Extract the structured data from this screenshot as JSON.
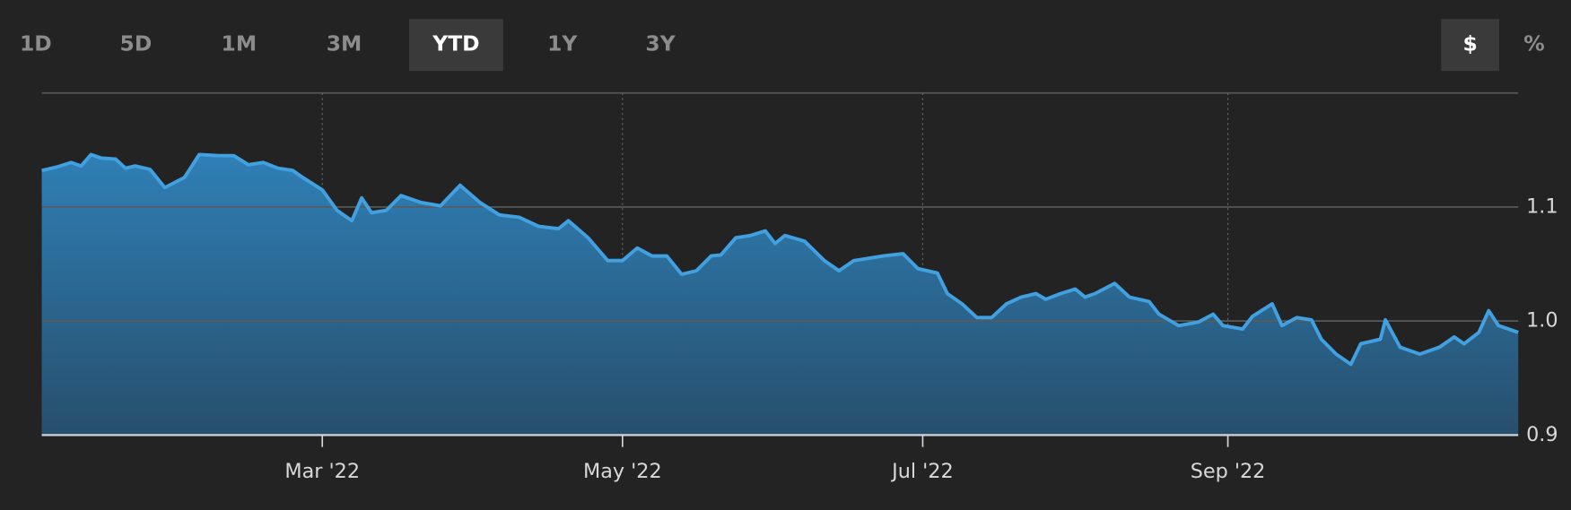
{
  "range_buttons": [
    "1D",
    "5D",
    "1M",
    "3M",
    "YTD",
    "1Y",
    "3Y"
  ],
  "unit_buttons": [
    "$",
    "%"
  ],
  "chart_data": {
    "type": "area",
    "color": "#41a0e0",
    "x": [
      2,
      5,
      8,
      10,
      12,
      14,
      17,
      19,
      21,
      24,
      27,
      31,
      34,
      38,
      41,
      44,
      47,
      50,
      53,
      55,
      59,
      62,
      65,
      67,
      69,
      72,
      75,
      79,
      83,
      87,
      91,
      95,
      99,
      103,
      107,
      109,
      113,
      117,
      120,
      123,
      126,
      129,
      132,
      135,
      138,
      140,
      143,
      146,
      149,
      151,
      153,
      157,
      161,
      164,
      167,
      170,
      173,
      177,
      180,
      184,
      186,
      189,
      192,
      195,
      198,
      201,
      204,
      206,
      209,
      212,
      214,
      216,
      220,
      223,
      227,
      229,
      233,
      237,
      240,
      242,
      246,
      248,
      252,
      254,
      257,
      260,
      262,
      265,
      268,
      270,
      274,
      275,
      278,
      282,
      286,
      289,
      291,
      294,
      296,
      298,
      302
    ],
    "values": [
      1.132,
      1.135,
      1.139,
      1.136,
      1.146,
      1.143,
      1.142,
      1.134,
      1.136,
      1.133,
      1.117,
      1.126,
      1.146,
      1.145,
      1.145,
      1.137,
      1.139,
      1.134,
      1.132,
      1.126,
      1.115,
      1.097,
      1.088,
      1.108,
      1.095,
      1.097,
      1.11,
      1.104,
      1.101,
      1.119,
      1.104,
      1.093,
      1.091,
      1.083,
      1.081,
      1.088,
      1.073,
      1.053,
      1.053,
      1.064,
      1.057,
      1.057,
      1.041,
      1.044,
      1.057,
      1.058,
      1.073,
      1.075,
      1.079,
      1.068,
      1.075,
      1.07,
      1.053,
      1.044,
      1.053,
      1.055,
      1.057,
      1.059,
      1.046,
      1.042,
      1.024,
      1.015,
      1.003,
      1.003,
      1.015,
      1.021,
      1.024,
      1.019,
      1.024,
      1.028,
      1.021,
      1.024,
      1.033,
      1.021,
      1.017,
      1.006,
      0.996,
      0.999,
      1.006,
      0.996,
      0.993,
      1.004,
      1.015,
      0.996,
      1.003,
      1.001,
      0.984,
      0.971,
      0.962,
      0.98,
      0.984,
      1.001,
      0.977,
      0.971,
      0.977,
      0.986,
      0.98,
      0.99,
      1.009,
      0.996,
      0.99
    ],
    "xlim": [
      2,
      302
    ],
    "xticks": [
      {
        "value": 59,
        "label": "Mar '22"
      },
      {
        "value": 120,
        "label": "May '22"
      },
      {
        "value": 181,
        "label": "Jul '22"
      },
      {
        "value": 243,
        "label": "Sep '22"
      }
    ],
    "ylim": [
      0.9,
      1.2
    ],
    "yticks": [
      {
        "value": 0.9,
        "label": "0.9"
      },
      {
        "value": 1,
        "label": "1.0"
      },
      1.1
    ],
    "grid": true
  }
}
